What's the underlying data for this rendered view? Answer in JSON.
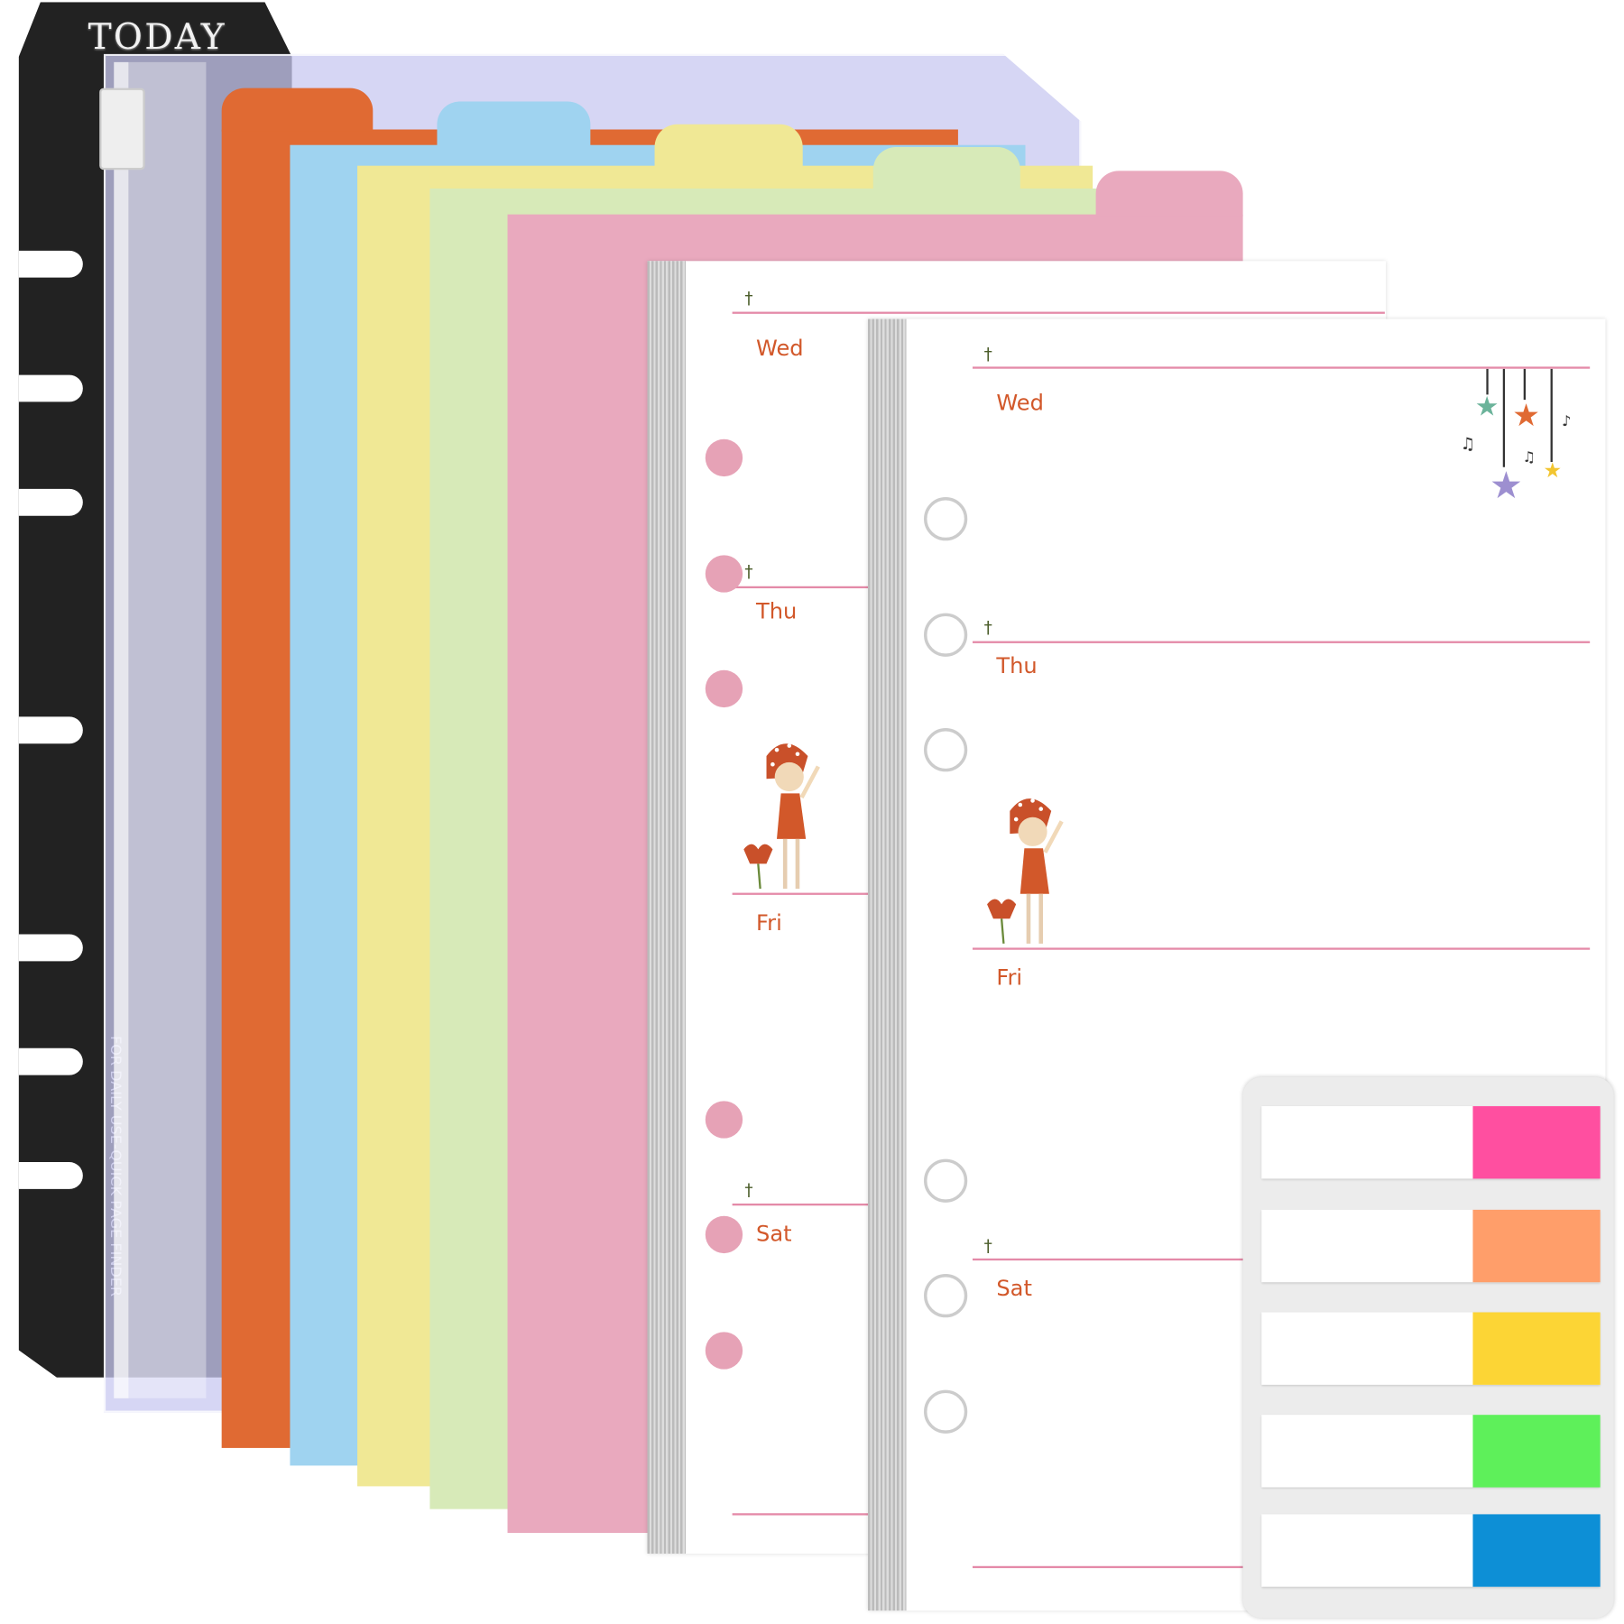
{
  "card": {
    "title": "TODAY",
    "spine_text": "FOR DAILY USE-QUICK PAGE FINDER"
  },
  "dividers": [
    {
      "color": "#e06a33"
    },
    {
      "color": "#9fd3f0"
    },
    {
      "color": "#f0e895"
    },
    {
      "color": "#d7eab8"
    },
    {
      "color": "#e9a9be"
    }
  ],
  "back_page": {
    "days": [
      "Wed",
      "Thu",
      "Fri",
      "Sat"
    ],
    "hole_color": "#e6a2b6"
  },
  "front_page": {
    "days": [
      "Wed",
      "Thu",
      "Fri",
      "Sat"
    ],
    "hole_color": "#ffffff"
  },
  "sticky_tabs": [
    {
      "color": "#ff4fa0"
    },
    {
      "color": "#ff9e6a"
    },
    {
      "color": "#fcd535"
    },
    {
      "color": "#5ef05a"
    },
    {
      "color": "#0d8fd6"
    }
  ]
}
